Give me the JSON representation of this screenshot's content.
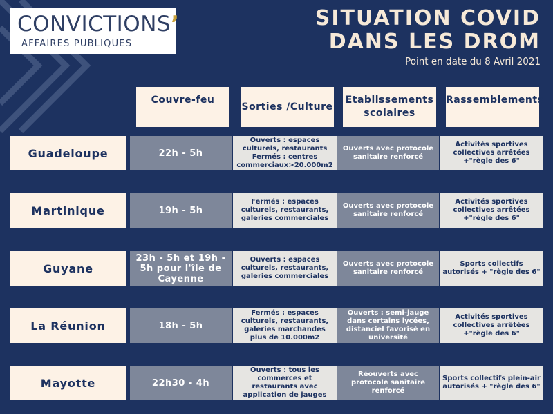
{
  "logo": {
    "main": "CONVICTIONS",
    "apostrophe": "’",
    "sub": "AFFAIRES PUBLIQUES"
  },
  "title": {
    "line1": "SITUATION COVID",
    "line2": "DANS LES DROM",
    "subtitle": "Point en date du 8 Avril 2021"
  },
  "columns": {
    "curfew": "Couvre-feu",
    "culture": "Sorties /Culture",
    "schools_line1": "Etablissements",
    "schools_line2": "scolaires",
    "gatherings": "Rassemblements"
  },
  "rows": [
    {
      "region": "Guadeloupe",
      "curfew": "22h - 5h",
      "culture": "Ouverts : espaces culturels, restaurants Fermés : centres commerciaux>20.000m2",
      "schools": "Ouverts avec protocole sanitaire renforcé",
      "gatherings": "Activités sportives collectives arrêtées +\"règle des 6\""
    },
    {
      "region": "Martinique",
      "curfew": "19h - 5h",
      "culture": "Fermés : espaces culturels, restaurants, galeries commerciales",
      "schools": "Ouverts avec protocole sanitaire renforcé",
      "gatherings": "Activités sportives collectives arrêtées +\"règle des 6\""
    },
    {
      "region": "Guyane",
      "curfew": "23h - 5h et 19h - 5h pour l'île de Cayenne",
      "culture": "Ouverts : espaces culturels, restaurants, galeries commerciales",
      "schools": "Ouverts avec protocole sanitaire renforcé",
      "gatherings": "Sports collectifs autorisés + \"règle des 6\""
    },
    {
      "region": "La Réunion",
      "curfew": "18h - 5h",
      "culture": "Fermés : espaces culturels, restaurants, galeries marchandes plus de 10.000m2",
      "schools": "Ouverts : semi-jauge dans certains lycées, distanciel favorisé en université",
      "gatherings": "Activités sportives collectives arrêtées +\"règle des 6\""
    },
    {
      "region": "Mayotte",
      "curfew": "22h30 - 4h",
      "culture": "Ouverts : tous les commerces et restaurants avec application de jauges",
      "schools": "Réouverts avec protocole sanitaire renforcé",
      "gatherings": "Sports collectifs plein-air autorisés + \"règle des 6\""
    }
  ],
  "colors": {
    "background": "#1d3260",
    "cream": "#fdf2e6",
    "slate": "#7e879a",
    "light_gray": "#e6e5e2",
    "accent_gold": "#c9a23a"
  }
}
